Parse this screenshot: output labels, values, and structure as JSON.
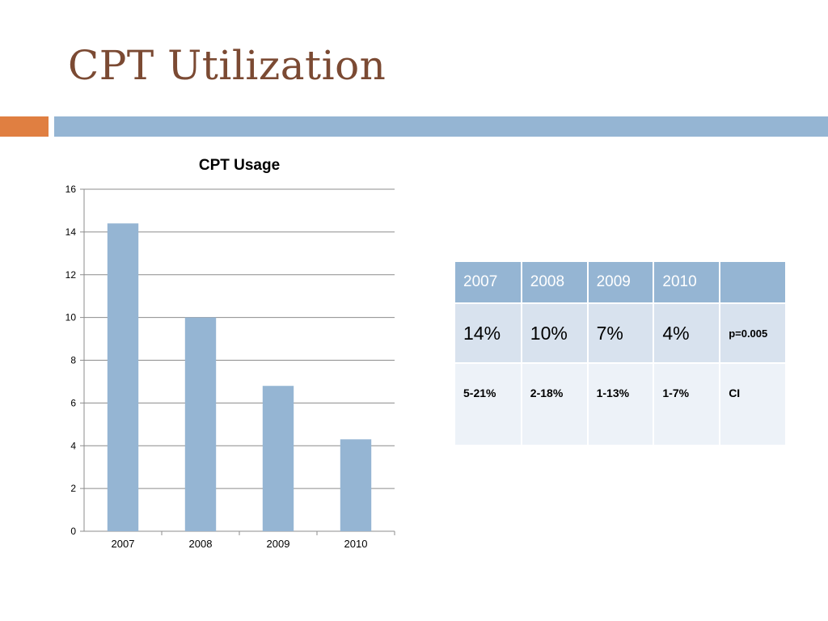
{
  "slide": {
    "title": "CPT Utilization"
  },
  "colors": {
    "title": "#7b4a33",
    "accent_orange": "#e07f41",
    "accent_blue": "#95b5d3",
    "bar": "#95b5d3",
    "gridline": "#8c8c8c"
  },
  "chart_data": {
    "type": "bar",
    "title": "CPT Usage",
    "categories": [
      "2007",
      "2008",
      "2009",
      "2010"
    ],
    "values": [
      14.4,
      10.0,
      6.8,
      4.3
    ],
    "xlabel": "",
    "ylabel": "",
    "ylim": [
      0,
      16
    ],
    "yticks": [
      0,
      2,
      4,
      6,
      8,
      10,
      12,
      14,
      16
    ],
    "grid": true,
    "legend": "none"
  },
  "table": {
    "header": [
      "2007",
      "2008",
      "2009",
      "2010",
      ""
    ],
    "rows": [
      [
        "14%",
        "10%",
        "7%",
        "4%",
        "p=0.005"
      ],
      [
        "5-21%",
        "2-18%",
        "1-13%",
        "1-7%",
        "CI"
      ]
    ]
  }
}
